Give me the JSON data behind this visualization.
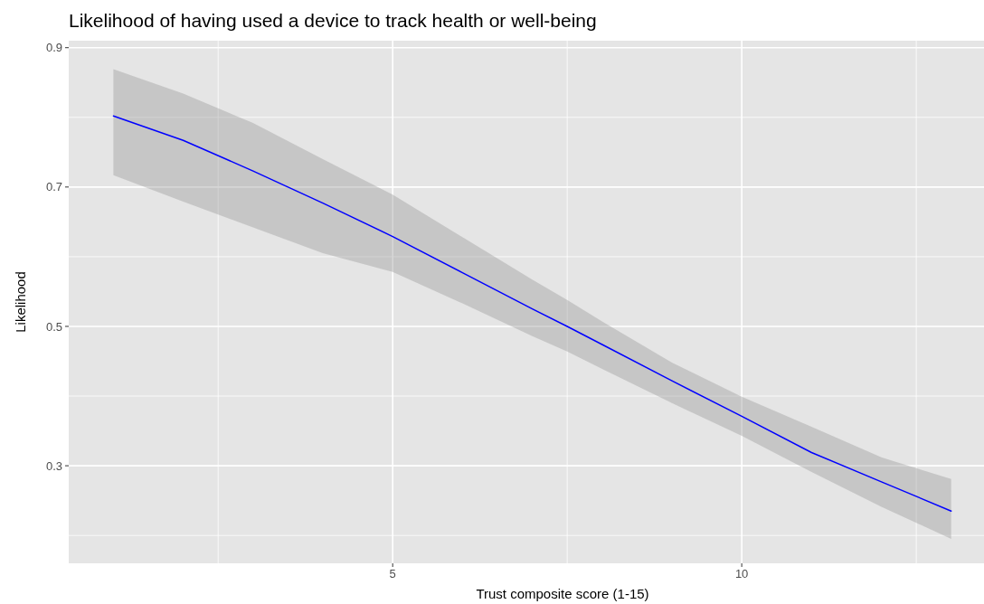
{
  "chart_data": {
    "type": "line",
    "title": "Likelihood of having used a device to track health or well-being",
    "xlabel": "Trust composite score (1-15)",
    "ylabel": "Likelihood",
    "x": [
      1,
      2,
      3,
      4,
      5,
      6,
      7,
      7.5,
      8,
      9,
      10,
      11,
      12,
      13
    ],
    "series": [
      {
        "color": "#0000ff",
        "values": [
          0.802,
          0.767,
          0.723,
          0.677,
          0.629,
          0.577,
          0.525,
          0.5,
          0.474,
          0.422,
          0.371,
          0.319,
          0.277,
          0.235
        ],
        "lower": [
          0.717,
          0.679,
          0.642,
          0.605,
          0.578,
          0.533,
          0.486,
          0.464,
          0.439,
          0.39,
          0.343,
          0.291,
          0.241,
          0.195
        ],
        "upper": [
          0.869,
          0.834,
          0.792,
          0.74,
          0.689,
          0.628,
          0.567,
          0.538,
          0.507,
          0.448,
          0.399,
          0.356,
          0.312,
          0.281
        ]
      }
    ],
    "xlim": [
      0.36,
      13.47
    ],
    "ylim": [
      0.16,
      0.91
    ],
    "xticks": [
      {
        "value": 2.5,
        "label": null
      },
      5,
      {
        "value": 7.5,
        "label": null
      },
      10,
      {
        "value": 12.5,
        "label": null
      }
    ],
    "yticks": [
      {
        "value": 0.2,
        "label": null
      },
      0.3,
      {
        "value": 0.4,
        "label": null
      },
      0.5,
      {
        "value": 0.6,
        "label": null
      },
      0.7,
      {
        "value": 0.8,
        "label": null
      },
      0.9
    ],
    "grid": true,
    "marker": "none",
    "line_style": "solid"
  }
}
